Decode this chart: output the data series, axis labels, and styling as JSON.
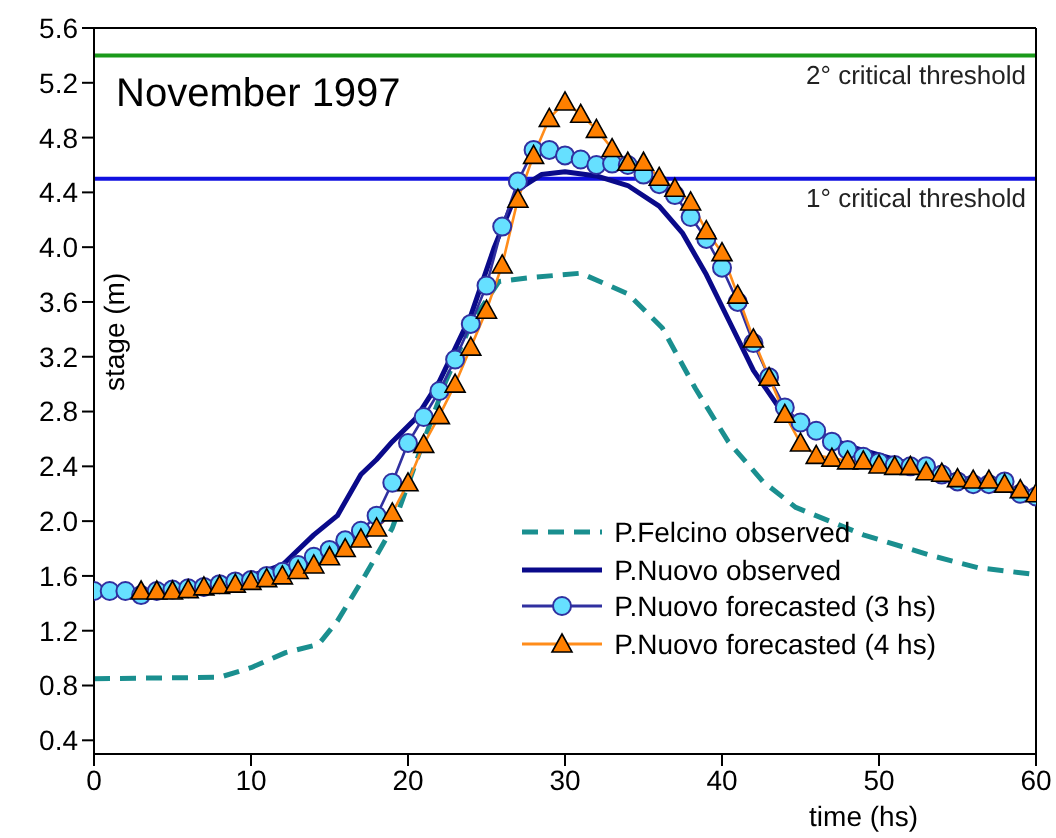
{
  "chart_data": {
    "type": "line",
    "xlabel": "time (hs)",
    "ylabel": "stage (m)",
    "annotations": [
      "November 1997"
    ],
    "xlim": [
      0,
      60
    ],
    "xticks": [
      0,
      10,
      20,
      30,
      40,
      50,
      60
    ],
    "ylim": [
      0.3,
      5.6
    ],
    "yticks": [
      0.4,
      0.8,
      1.2,
      1.6,
      {
        "value": 2,
        "label": "2.0"
      },
      2.4,
      2.8,
      3.2,
      3.6,
      {
        "value": 4,
        "label": "4.0"
      },
      4.4,
      4.8,
      5.2,
      5.6
    ],
    "grid": false,
    "legend": "bottom right",
    "ref_lines": [
      {
        "axis": "y",
        "value": 5.4,
        "label": "2° critical threshold",
        "color": "#1a9a1a"
      },
      {
        "axis": "y",
        "value": 4.5,
        "label": "1° critical threshold",
        "color": "#1010e0"
      }
    ],
    "series": [
      {
        "name": "P.Felcino observed",
        "color": "#1a8f8f",
        "line_style": "dashed",
        "marker": "none",
        "x": [
          0,
          8,
          10,
          12.2,
          14.3,
          15.5,
          17.3,
          19,
          20.7,
          22.4,
          24.1,
          25.8,
          28,
          31,
          34,
          36.2,
          38.3,
          40.4,
          42.6,
          44.7,
          49,
          53.3,
          56.3,
          60
        ],
        "values": [
          0.85,
          0.86,
          0.93,
          1.04,
          1.1,
          1.27,
          1.61,
          1.95,
          2.49,
          3.02,
          3.46,
          3.75,
          3.78,
          3.81,
          3.66,
          3.41,
          2.97,
          2.58,
          2.29,
          2.1,
          1.9,
          1.75,
          1.66,
          1.61
        ]
      },
      {
        "name": "P.Nuovo observed",
        "color": "#0a0a8a",
        "line_style": "solid",
        "marker": "none",
        "x": [
          0,
          5,
          10,
          12,
          14,
          15.5,
          17,
          18,
          19,
          20.5,
          22,
          24,
          25.5,
          27,
          28.5,
          30,
          32,
          34,
          36,
          37.5,
          39,
          40.5,
          42,
          43.5,
          45,
          48,
          51,
          54,
          57,
          60
        ],
        "values": [
          1.47,
          1.5,
          1.6,
          1.68,
          1.9,
          2.04,
          2.34,
          2.45,
          2.58,
          2.75,
          3.02,
          3.5,
          4.0,
          4.42,
          4.53,
          4.55,
          4.52,
          4.45,
          4.3,
          4.1,
          3.8,
          3.45,
          3.1,
          2.85,
          2.7,
          2.55,
          2.45,
          2.35,
          2.27,
          2.2
        ]
      },
      {
        "name": "P.Nuovo forecasted (3 hs)",
        "color": "#3030a0",
        "line_style": "solid",
        "marker": "circle",
        "x": [
          0,
          1,
          2,
          3,
          4,
          5,
          6,
          7,
          8,
          9,
          10,
          11,
          12,
          13,
          14,
          15,
          16,
          17,
          18,
          19,
          20,
          21,
          22,
          23,
          24,
          25,
          26,
          27,
          28,
          29,
          30,
          31,
          32,
          33,
          34,
          35,
          36,
          37,
          38,
          39,
          40,
          41,
          42,
          43,
          44,
          45,
          46,
          47,
          48,
          49,
          50,
          51,
          52,
          53,
          54,
          55,
          56,
          57,
          58,
          59,
          60
        ],
        "values": [
          1.49,
          1.49,
          1.49,
          1.46,
          1.49,
          1.5,
          1.51,
          1.52,
          1.54,
          1.56,
          1.57,
          1.6,
          1.63,
          1.68,
          1.74,
          1.79,
          1.86,
          1.93,
          2.04,
          2.28,
          2.57,
          2.76,
          2.95,
          3.18,
          3.44,
          3.72,
          4.15,
          4.48,
          4.71,
          4.71,
          4.67,
          4.64,
          4.6,
          4.61,
          4.6,
          4.53,
          4.46,
          4.38,
          4.22,
          4.06,
          3.85,
          3.6,
          3.3,
          3.05,
          2.83,
          2.72,
          2.66,
          2.58,
          2.52,
          2.47,
          2.43,
          2.41,
          2.4,
          2.4,
          2.34,
          2.29,
          2.27,
          2.27,
          2.29,
          2.2,
          2.18
        ]
      },
      {
        "name": "P.Nuovo forecasted (4 hs)",
        "color": "#ff8c1a",
        "line_style": "solid",
        "marker": "triangle",
        "x": [
          3,
          4,
          5,
          6,
          7,
          8,
          9,
          10,
          11,
          12,
          13,
          14,
          15,
          16,
          17,
          18,
          19,
          20,
          21,
          22,
          23,
          24,
          25,
          26,
          27,
          28,
          29,
          30,
          31,
          32,
          33,
          34,
          35,
          36,
          37,
          38,
          39,
          40,
          41,
          42,
          43,
          44,
          45,
          46,
          47,
          48,
          49,
          50,
          51,
          52,
          53,
          54,
          55,
          56,
          57,
          58,
          59,
          60
        ],
        "values": [
          1.49,
          1.49,
          1.49,
          1.5,
          1.52,
          1.53,
          1.54,
          1.56,
          1.58,
          1.6,
          1.64,
          1.68,
          1.74,
          1.8,
          1.87,
          1.95,
          2.06,
          2.28,
          2.56,
          2.77,
          3.0,
          3.27,
          3.54,
          3.87,
          4.35,
          4.67,
          4.94,
          5.06,
          4.97,
          4.86,
          4.72,
          4.62,
          4.62,
          4.51,
          4.43,
          4.33,
          4.12,
          3.96,
          3.65,
          3.33,
          3.05,
          2.78,
          2.57,
          2.48,
          2.46,
          2.44,
          2.44,
          2.41,
          2.4,
          2.4,
          2.36,
          2.35,
          2.31,
          2.3,
          2.3,
          2.27,
          2.23,
          2.2
        ]
      }
    ]
  }
}
